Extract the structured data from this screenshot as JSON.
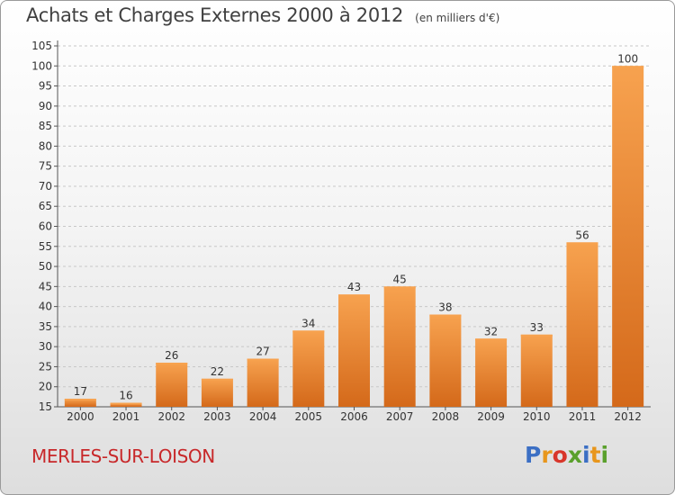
{
  "header": {
    "title": "Achats et Charges Externes 2000 à 2012",
    "unit": "(en milliers d'€)"
  },
  "footer": {
    "town": "MERLES-SUR-LOISON",
    "logo_letters": [
      "P",
      "r",
      "o",
      "x",
      "i",
      "t",
      "i"
    ],
    "logo_colors": [
      "#3b6fc4",
      "#e8961c",
      "#d8362a",
      "#5aa02c",
      "#3b6fc4",
      "#e8961c",
      "#5aa02c"
    ]
  },
  "colors": {
    "bar_top": "#f7a24f",
    "bar_bottom": "#d4691a",
    "grid": "#c8c8c8",
    "axis": "#555555",
    "text": "#333333"
  },
  "chart_data": {
    "type": "bar",
    "title": "Achats et Charges Externes 2000 à 2012",
    "subtitle": "(en milliers d'€)",
    "categories": [
      "2000",
      "2001",
      "2002",
      "2003",
      "2004",
      "2005",
      "2006",
      "2007",
      "2008",
      "2009",
      "2010",
      "2011",
      "2012"
    ],
    "values": [
      17,
      16,
      26,
      22,
      27,
      34,
      43,
      45,
      38,
      32,
      33,
      56,
      100
    ],
    "ylim": [
      15,
      105
    ],
    "yticks": [
      15,
      20,
      25,
      30,
      35,
      40,
      45,
      50,
      55,
      60,
      65,
      70,
      75,
      80,
      85,
      90,
      95,
      100,
      105
    ],
    "grid": "horizontal dashed",
    "legend": "none"
  }
}
